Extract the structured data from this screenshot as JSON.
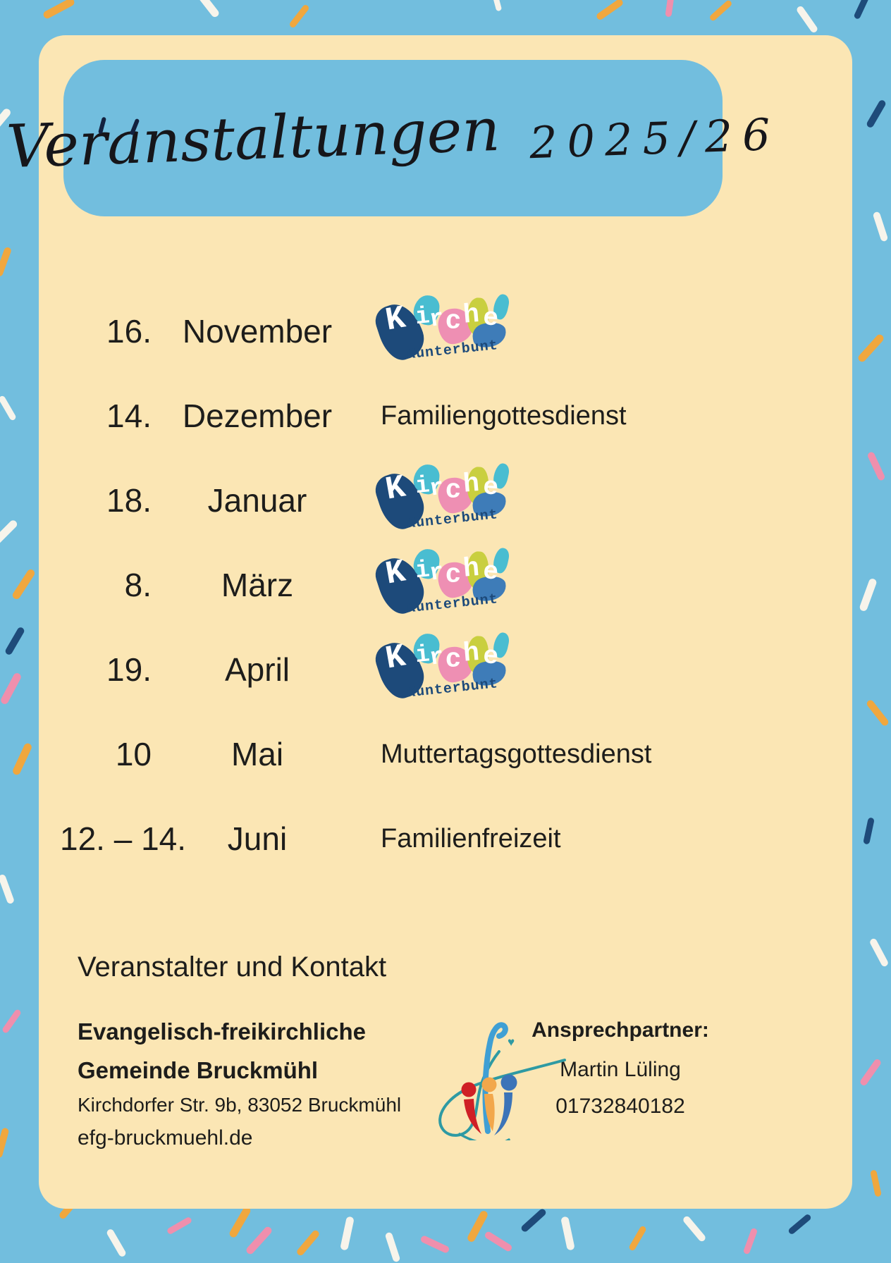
{
  "palette": {
    "background_blue": "#72bede",
    "panel_cream": "#fbe6b4",
    "text_dark": "#1d1d1b"
  },
  "header": {
    "title_script": "Veranstaltungen",
    "title_year": "2025/26"
  },
  "schedule": {
    "rows": [
      {
        "date": "16.",
        "month": "November",
        "event_type": "logo",
        "event": "Kirche Kunterbunt"
      },
      {
        "date": "14.",
        "month": "Dezember",
        "event_type": "text",
        "event": "Familiengottesdienst"
      },
      {
        "date": "18.",
        "month": "Januar",
        "event_type": "logo",
        "event": "Kirche Kunterbunt"
      },
      {
        "date": "8.",
        "month": "März",
        "event_type": "logo",
        "event": "Kirche Kunterbunt"
      },
      {
        "date": "19.",
        "month": "April",
        "event_type": "logo",
        "event": "Kirche Kunterbunt"
      },
      {
        "date": "10",
        "month": "Mai",
        "event_type": "text",
        "event": "Muttertagsgottesdienst"
      },
      {
        "date": "12. – 14.",
        "month": "Juni",
        "event_type": "text",
        "event": "Familienfreizeit"
      }
    ]
  },
  "kk_logo": {
    "word_top": "Kirche",
    "word_bottom": "Kunterbunt",
    "colors": {
      "navy": "#1d4a7a",
      "cyan": "#49bdd1",
      "pink": "#ee8fb3",
      "lime": "#c9cf3f",
      "blue": "#3e7cb8",
      "cyan2": "#49bdd1",
      "bottom_text": "#1d4a7a"
    }
  },
  "contact": {
    "heading": "Veranstalter und Kontakt",
    "org_line1": "Evangelisch-freikirchliche",
    "org_line2": "Gemeinde Bruckmühl",
    "address": "Kirchdorfer Str. 9b, 83052 Bruckmühl",
    "website": "efg-bruckmuehl.de",
    "person_label": "Ansprechpartner:",
    "person_name": "Martin Lüling",
    "person_phone": "01732840182"
  },
  "efg_logo_colors": {
    "f_stem": "#3f9fd4",
    "swash": "#2e9aa3",
    "person_red": "#cf2026",
    "person_orange": "#f2a74b",
    "person_blue": "#3c74b8"
  },
  "confetti": {
    "colors": {
      "orange": "#f0a73e",
      "white": "#f7f4eb",
      "pink": "#ef8fad",
      "navy": "#1e4b7a",
      "darknavy": "#13223f"
    }
  }
}
